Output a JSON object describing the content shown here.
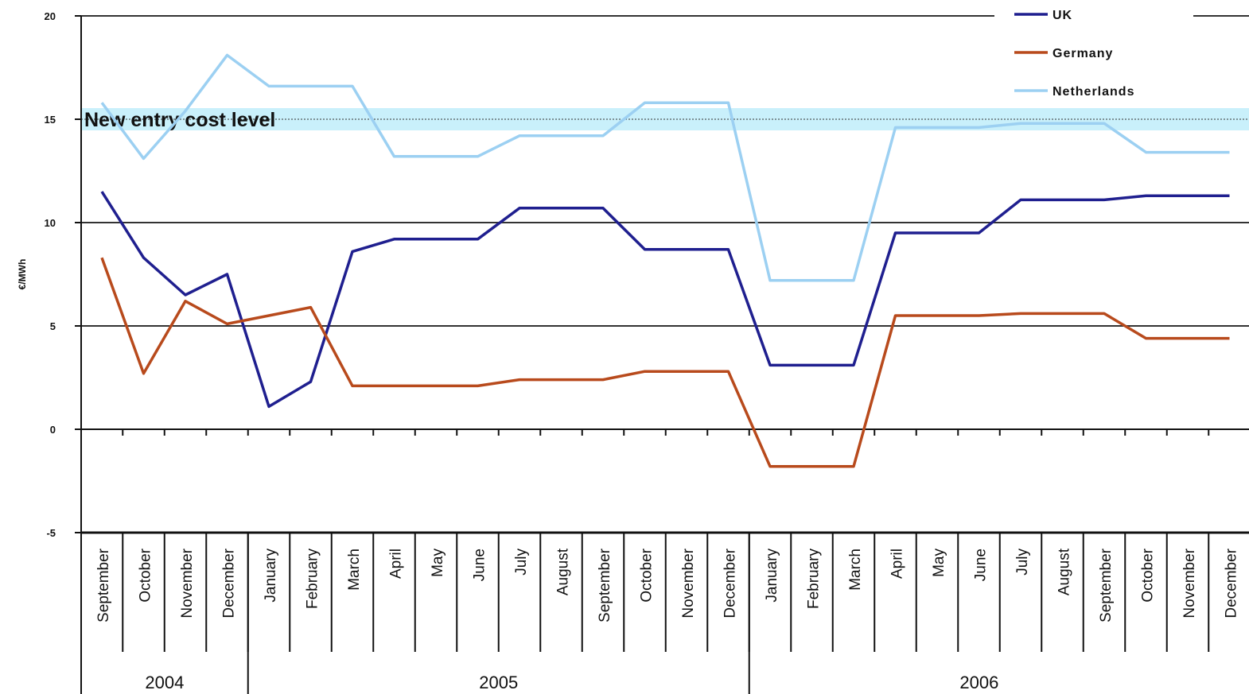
{
  "chart_data": {
    "type": "line",
    "title": "",
    "xlabel": "",
    "ylabel": "€/MWh",
    "ylim": [
      -5,
      20
    ],
    "yticks": [
      -5,
      0,
      5,
      10,
      15,
      20
    ],
    "grid": "horizontal lines at 5, 10, 20",
    "legend_placement": "top-right",
    "categories": [
      "September",
      "October",
      "November",
      "December",
      "January",
      "February",
      "March",
      "April",
      "May",
      "June",
      "July",
      "August",
      "September",
      "October",
      "November",
      "December",
      "January",
      "February",
      "March",
      "April",
      "May",
      "June",
      "July",
      "August",
      "September",
      "October",
      "November",
      "December"
    ],
    "year_groups": [
      {
        "label": "2004",
        "months": 4
      },
      {
        "label": "2005",
        "months": 12
      },
      {
        "label": "2006",
        "months": 12
      }
    ],
    "series": [
      {
        "name": "UK",
        "color": "#1f1f8f",
        "values": [
          11.5,
          8.3,
          6.5,
          7.5,
          1.1,
          2.3,
          8.6,
          9.2,
          9.2,
          9.2,
          10.7,
          10.7,
          10.7,
          8.7,
          8.7,
          8.7,
          3.1,
          3.1,
          3.1,
          9.5,
          9.5,
          9.5,
          11.1,
          11.1,
          11.1,
          11.3,
          11.3,
          11.3
        ]
      },
      {
        "name": "Germany",
        "color": "#b84a1c",
        "values": [
          8.3,
          2.7,
          6.2,
          5.1,
          5.5,
          5.9,
          2.1,
          2.1,
          2.1,
          2.1,
          2.4,
          2.4,
          2.4,
          2.8,
          2.8,
          2.8,
          -1.8,
          -1.8,
          -1.8,
          5.5,
          5.5,
          5.5,
          5.6,
          5.6,
          5.6,
          4.4,
          4.4,
          4.4
        ]
      },
      {
        "name": "Netherlands",
        "color": "#9cd0f2",
        "values": [
          15.8,
          13.1,
          15.4,
          18.1,
          16.6,
          16.6,
          16.6,
          13.2,
          13.2,
          13.2,
          14.2,
          14.2,
          14.2,
          15.8,
          15.8,
          15.8,
          7.2,
          7.2,
          7.2,
          14.6,
          14.6,
          14.6,
          14.8,
          14.8,
          14.8,
          13.4,
          13.4,
          13.4
        ]
      }
    ],
    "reference_line": {
      "label": "New entry cost level",
      "value": 15,
      "color": "#c9f0fb"
    },
    "colors": {
      "axis": "#111111",
      "grid": "#333333",
      "reference_band": "#c9f0fb"
    }
  }
}
